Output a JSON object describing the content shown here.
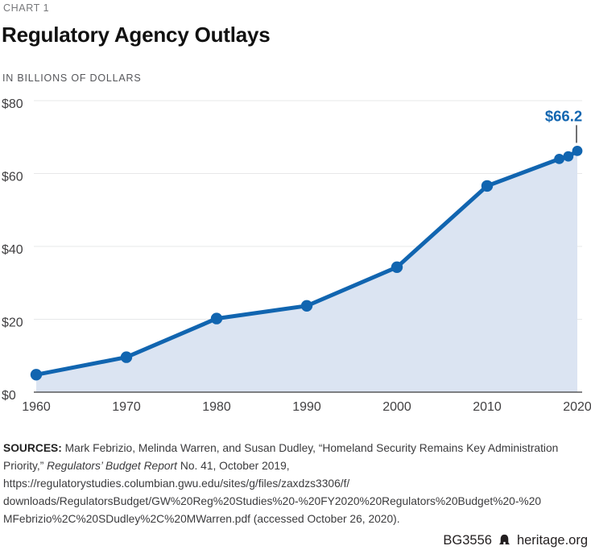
{
  "header": {
    "kicker": "CHART 1",
    "title": "Regulatory Agency Outlays",
    "units": "IN BILLIONS OF DOLLARS"
  },
  "chart_data": {
    "type": "area",
    "title": "Regulatory Agency Outlays",
    "subtitle": "IN BILLIONS OF DOLLARS",
    "series_name": "Regulatory agency outlays ($B)",
    "x": [
      1960,
      1970,
      1980,
      1990,
      2000,
      2010,
      2018,
      2019,
      2020
    ],
    "values": [
      4.8,
      9.6,
      20.2,
      23.7,
      34.3,
      56.6,
      64.0,
      64.7,
      66.2
    ],
    "x_ticks": [
      1960,
      1970,
      1980,
      1990,
      2000,
      2010,
      2020
    ],
    "y_ticks": [
      {
        "value": 0,
        "label": "$0"
      },
      {
        "value": 20,
        "label": "$20"
      },
      {
        "value": 40,
        "label": "$40"
      },
      {
        "value": 60,
        "label": "$60"
      },
      {
        "value": 80,
        "label": "$80"
      }
    ],
    "xlim": [
      1960,
      2020
    ],
    "ylim": [
      0,
      80
    ],
    "grid": true,
    "legend": false,
    "annotation": {
      "label": "$66.2",
      "x": 2020,
      "y": 66.2
    }
  },
  "colors": {
    "line": "#1165b0",
    "fill": "#dbe4f2",
    "annotation_text": "#1165b0",
    "callout_line": "#414042",
    "grid": "#e7e8e9",
    "baseline": "#58595b",
    "axis_text": "#414042"
  },
  "sources": {
    "label": "SOURCES:",
    "pre_italic": " Mark Febrizio, Melinda Warren, and Susan Dudley, “Homeland Security Remains Key Administration Priority,” ",
    "italic": "Regulators’ Budget Report",
    "post_italic": " No. 41, October 2019, https://regulatorystudies.columbian.gwu.edu/sites/g/files/zaxdzs3306/f/ downloads/RegulatorsBudget/GW%20Reg%20Studies%20-%20FY2020%20Regulators%20Budget%20-%20 MFebrizio%2C%20SDudley%2C%20MWarren.pdf (accessed October 26, 2020)."
  },
  "footer": {
    "report_id": "BG3556",
    "site": "heritage.org"
  }
}
